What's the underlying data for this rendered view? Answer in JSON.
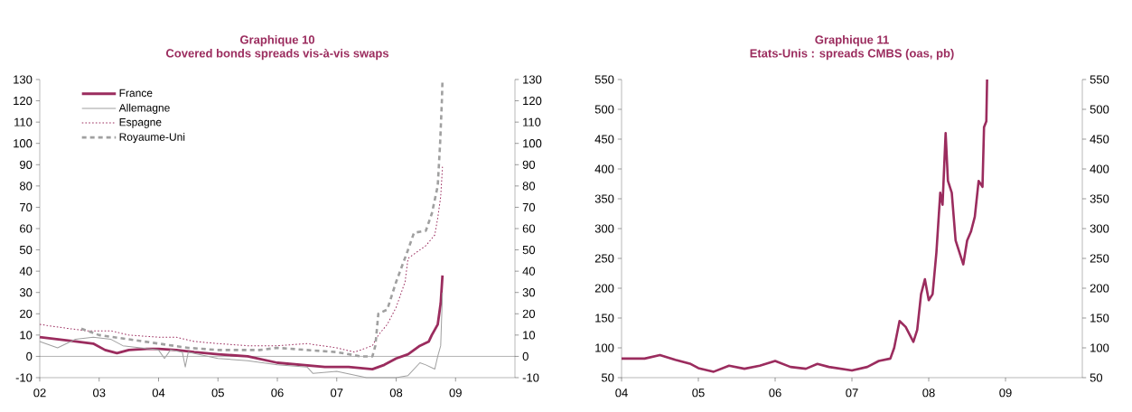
{
  "chart_data": [
    {
      "type": "line",
      "title": "Graphique 10",
      "subtitle": "Covered bonds spreads vis-à-vis swaps",
      "xlim": [
        2002,
        2010
      ],
      "xticks": [
        {
          "value": 2002,
          "label": "02"
        },
        {
          "value": 2003,
          "label": "03"
        },
        {
          "value": 2004,
          "label": "04"
        },
        {
          "value": 2005,
          "label": "05"
        },
        {
          "value": 2006,
          "label": "06"
        },
        {
          "value": 2007,
          "label": "07"
        },
        {
          "value": 2008,
          "label": "08"
        },
        {
          "value": 2009,
          "label": "09"
        }
      ],
      "ylim": [
        -10,
        130
      ],
      "yticks": [
        -10,
        0,
        10,
        20,
        30,
        40,
        50,
        60,
        70,
        80,
        90,
        100,
        110,
        120,
        130
      ],
      "y2lim": [
        -10,
        130
      ],
      "y2ticks": [
        -10,
        0,
        10,
        20,
        30,
        40,
        50,
        60,
        70,
        80,
        90,
        100,
        110,
        120,
        130
      ],
      "legend": "top left",
      "grid": false,
      "marker": "none",
      "ref_lines": [
        {
          "axis": "y",
          "value": 0,
          "color": "#404040"
        }
      ],
      "series": [
        {
          "name": "France",
          "color": "#9b2c5e",
          "line_style": "solid",
          "x": [
            2002.0,
            2002.3,
            2002.6,
            2002.9,
            2003.1,
            2003.3,
            2003.5,
            2003.8,
            2004.0,
            2004.3,
            2004.6,
            2005.0,
            2005.5,
            2006.0,
            2006.4,
            2006.8,
            2007.2,
            2007.6,
            2007.8,
            2008.0,
            2008.2,
            2008.4,
            2008.55,
            2008.6,
            2008.7,
            2008.75,
            2008.78
          ],
          "values": [
            9,
            8,
            7,
            6,
            3,
            1.5,
            3,
            3.5,
            3.5,
            3,
            2,
            1,
            0,
            -3,
            -4,
            -5,
            -5,
            -6,
            -4,
            -1,
            1,
            5,
            7,
            10,
            15,
            25,
            38
          ]
        },
        {
          "name": "Allemagne",
          "color": "#a0a0a0",
          "line_style": "solid",
          "x": [
            2002.0,
            2002.3,
            2002.6,
            2002.9,
            2003.2,
            2003.4,
            2003.7,
            2004.0,
            2004.1,
            2004.2,
            2004.4,
            2004.45,
            2004.5,
            2005.0,
            2005.5,
            2006.0,
            2006.5,
            2006.6,
            2007.0,
            2007.5,
            2008.0,
            2008.2,
            2008.4,
            2008.5,
            2008.65,
            2008.7,
            2008.75,
            2008.78
          ],
          "values": [
            7,
            4,
            8,
            9,
            8,
            5,
            4,
            3,
            -1,
            3,
            2,
            -5,
            2,
            -1,
            -2,
            -4,
            -5,
            -8,
            -7,
            -10,
            -10,
            -9,
            -3,
            -4,
            -6,
            0,
            5,
            30
          ]
        },
        {
          "name": "Espagne",
          "color": "#9b2c5e",
          "line_style": "dotted",
          "x": [
            2002.0,
            2002.5,
            2002.8,
            2003.2,
            2003.5,
            2004.0,
            2004.3,
            2004.6,
            2005.0,
            2005.5,
            2006.0,
            2006.5,
            2007.0,
            2007.3,
            2007.6,
            2007.7,
            2007.85,
            2008.0,
            2008.15,
            2008.2,
            2008.5,
            2008.65,
            2008.7,
            2008.75,
            2008.78
          ],
          "values": [
            15,
            13,
            12,
            12,
            10,
            9,
            9,
            7,
            6,
            5,
            5,
            6,
            4,
            2,
            5,
            10,
            15,
            23,
            35,
            46,
            52,
            57,
            65,
            75,
            89
          ]
        },
        {
          "name": "Royaume-Uni",
          "color": "#a0a0a0",
          "line_style": "dashed",
          "x": [
            2002.7,
            2003.0,
            2003.5,
            2004.0,
            2004.5,
            2005.0,
            2005.7,
            2006.0,
            2006.5,
            2007.0,
            2007.4,
            2007.6,
            2007.65,
            2007.7,
            2007.85,
            2008.0,
            2008.2,
            2008.3,
            2008.5,
            2008.6,
            2008.7,
            2008.74,
            2008.77,
            2008.78
          ],
          "values": [
            13,
            10,
            8,
            6,
            4,
            3,
            3,
            4,
            3,
            2,
            0,
            0,
            5,
            20,
            22,
            35,
            50,
            58,
            59,
            67,
            80,
            100,
            120,
            130
          ]
        }
      ]
    },
    {
      "type": "line",
      "title": "Graphique 11",
      "subtitle": "Etats-Unis : spreads CMBS (oas, pb)",
      "xlim": [
        2004,
        2010
      ],
      "xticks": [
        {
          "value": 2004,
          "label": "04"
        },
        {
          "value": 2005,
          "label": "05"
        },
        {
          "value": 2006,
          "label": "06"
        },
        {
          "value": 2007,
          "label": "07"
        },
        {
          "value": 2008,
          "label": "08"
        },
        {
          "value": 2009,
          "label": "09"
        }
      ],
      "ylim": [
        50,
        550
      ],
      "yticks": [
        50,
        100,
        150,
        200,
        250,
        300,
        350,
        400,
        450,
        500,
        550
      ],
      "y2lim": [
        50,
        550
      ],
      "y2ticks": [
        50,
        100,
        150,
        200,
        250,
        300,
        350,
        400,
        450,
        500,
        550
      ],
      "legend": false,
      "grid": false,
      "marker": "none",
      "series": [
        {
          "color": "#9b2c5e",
          "line_style": "solid",
          "x": [
            2004.0,
            2004.3,
            2004.5,
            2004.7,
            2004.9,
            2005.0,
            2005.2,
            2005.4,
            2005.6,
            2005.8,
            2006.0,
            2006.2,
            2006.4,
            2006.55,
            2006.7,
            2007.0,
            2007.2,
            2007.35,
            2007.5,
            2007.55,
            2007.62,
            2007.7,
            2007.8,
            2007.85,
            2007.9,
            2007.95,
            2008.0,
            2008.05,
            2008.1,
            2008.15,
            2008.18,
            2008.22,
            2008.25,
            2008.3,
            2008.35,
            2008.45,
            2008.5,
            2008.55,
            2008.6,
            2008.65,
            2008.7,
            2008.72,
            2008.75,
            2008.76
          ],
          "values": [
            82,
            82,
            88,
            80,
            73,
            66,
            60,
            70,
            65,
            70,
            78,
            68,
            65,
            73,
            68,
            62,
            68,
            78,
            82,
            100,
            145,
            135,
            110,
            130,
            190,
            215,
            180,
            190,
            260,
            360,
            340,
            460,
            380,
            360,
            280,
            240,
            280,
            295,
            320,
            380,
            370,
            470,
            480,
            550
          ]
        }
      ]
    }
  ]
}
